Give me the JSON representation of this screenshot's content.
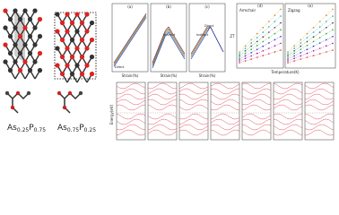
{
  "structures": [
    {
      "formula": [
        "As",
        "0.25",
        "P",
        "0.75"
      ]
    },
    {
      "formula": [
        "As",
        "0.75",
        "P",
        "0.25"
      ]
    }
  ],
  "strain_panels": {
    "labels": [
      "(a)",
      "(b)",
      "(c)"
    ],
    "x_label": "Strain(%)",
    "notes": [
      "Direct",
      "Indirect",
      "Indirect",
      "Direct"
    ]
  },
  "zt_panels": {
    "labels": [
      "(d)",
      "(e)"
    ],
    "titles": [
      "Armchair",
      "Zigzag"
    ],
    "x_label": "Temperature(K)",
    "y_label": "ZT"
  },
  "band_panels": {
    "y_label": "Energy(eV)"
  }
}
